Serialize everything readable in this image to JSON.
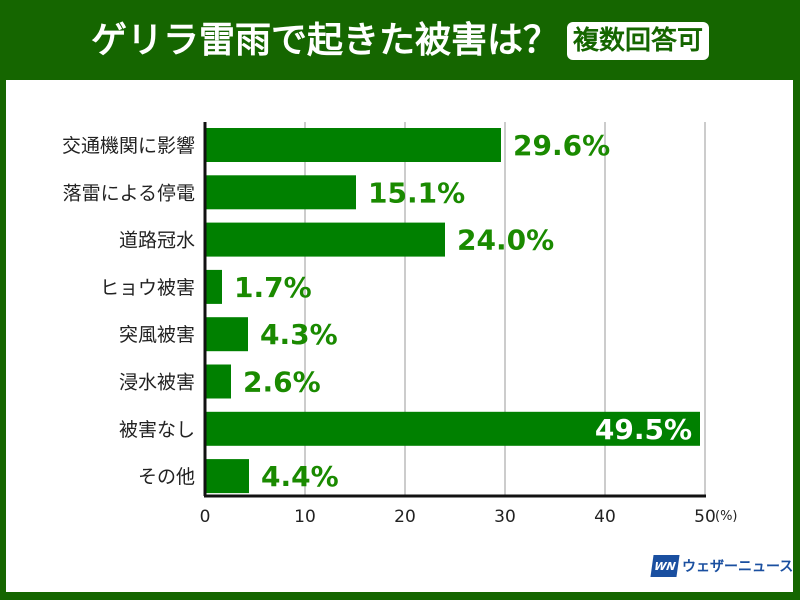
{
  "header": {
    "title": "ゲリラ雷雨で起きた被害は？",
    "badge": "複数回答可"
  },
  "logo": {
    "mark": "WN",
    "text": "ウェザーニュース"
  },
  "colors": {
    "frame": "#156600",
    "bar": "#008000",
    "value_label": "#1a8a00",
    "value_label_inside": "#ffffff"
  },
  "chart_data": {
    "type": "bar",
    "orientation": "horizontal",
    "title": "ゲリラ雷雨で起きた被害は？",
    "categories": [
      "交通機関に影響",
      "落雷による停電",
      "道路冠水",
      "ヒョウ被害",
      "突風被害",
      "浸水被害",
      "被害なし",
      "その他"
    ],
    "values": [
      29.6,
      15.1,
      24.0,
      1.7,
      4.3,
      2.6,
      49.5,
      4.4
    ],
    "data_labels": [
      "29.6%",
      "15.1%",
      "24.0%",
      "1.7%",
      "4.3%",
      "2.6%",
      "49.5%",
      "4.4%"
    ],
    "xlim": [
      0,
      50
    ],
    "xticks": [
      0,
      10,
      20,
      30,
      40,
      50
    ],
    "xtick_labels": [
      "0",
      "10",
      "20",
      "30",
      "40",
      "50"
    ],
    "xunit": "(%)",
    "grid": true
  }
}
